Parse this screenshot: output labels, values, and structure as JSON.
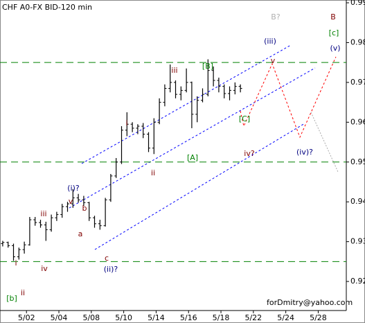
{
  "chart_data": {
    "type": "ohlc",
    "title": "CHF A0-FX BID-120 min",
    "credit": "forDmitry@yahoo.com",
    "x": [
      0,
      1,
      2,
      3,
      4,
      5,
      6,
      7,
      8,
      9,
      10,
      11,
      12,
      13,
      14,
      15,
      16,
      17,
      18,
      19,
      20,
      21,
      22,
      23,
      24,
      25,
      26,
      27,
      28,
      29,
      30,
      31,
      32,
      33,
      34,
      35,
      36,
      37,
      38,
      39,
      40,
      41,
      42,
      43,
      44
    ],
    "open": [
      0.9295,
      0.9298,
      0.929,
      0.9262,
      0.928,
      0.9292,
      0.9355,
      0.9348,
      0.9342,
      0.933,
      0.936,
      0.9368,
      0.9388,
      0.9395,
      0.941,
      0.9405,
      0.9398,
      0.936,
      0.9345,
      0.934,
      0.9405,
      0.9465,
      0.95,
      0.958,
      0.9595,
      0.9585,
      0.959,
      0.957,
      0.9535,
      0.96,
      0.965,
      0.9685,
      0.97,
      0.967,
      0.968,
      0.97,
      0.962,
      0.9655,
      0.967,
      0.973,
      0.9705,
      0.969,
      0.9672,
      0.968,
      0.969
    ],
    "high": [
      0.9302,
      0.93,
      0.9295,
      0.9285,
      0.93,
      0.9362,
      0.9362,
      0.9355,
      0.935,
      0.9368,
      0.9375,
      0.9395,
      0.94,
      0.9432,
      0.942,
      0.9415,
      0.94,
      0.9365,
      0.9355,
      0.941,
      0.947,
      0.951,
      0.959,
      0.9625,
      0.96,
      0.9595,
      0.9598,
      0.9575,
      0.961,
      0.966,
      0.9695,
      0.9745,
      0.9705,
      0.969,
      0.9735,
      0.9702,
      0.9665,
      0.9685,
      0.9758,
      0.974,
      0.9712,
      0.9695,
      0.969,
      0.97,
      0.9695
    ],
    "low": [
      0.9288,
      0.9285,
      0.9252,
      0.9255,
      0.927,
      0.929,
      0.934,
      0.9335,
      0.9302,
      0.9325,
      0.9352,
      0.936,
      0.9375,
      0.9385,
      0.9398,
      0.939,
      0.9352,
      0.9335,
      0.933,
      0.9338,
      0.94,
      0.946,
      0.9495,
      0.9565,
      0.9575,
      0.957,
      0.956,
      0.9525,
      0.952,
      0.9595,
      0.964,
      0.9675,
      0.966,
      0.9655,
      0.9675,
      0.9585,
      0.96,
      0.965,
      0.9665,
      0.969,
      0.9675,
      0.966,
      0.9655,
      0.967,
      0.9675
    ],
    "close": [
      0.9298,
      0.929,
      0.9262,
      0.928,
      0.9292,
      0.9355,
      0.9348,
      0.9342,
      0.933,
      0.936,
      0.9368,
      0.9388,
      0.9395,
      0.941,
      0.9405,
      0.9398,
      0.936,
      0.9345,
      0.934,
      0.9405,
      0.9465,
      0.95,
      0.958,
      0.9595,
      0.9585,
      0.959,
      0.957,
      0.9535,
      0.96,
      0.965,
      0.9685,
      0.97,
      0.967,
      0.968,
      0.97,
      0.962,
      0.9655,
      0.967,
      0.973,
      0.9705,
      0.969,
      0.9672,
      0.968,
      0.969,
      0.9685
    ],
    "color": "#000000",
    "xlim": [
      -0.5,
      63.6
    ],
    "xticks": [
      {
        "value": 4.4,
        "label": "5/02"
      },
      {
        "value": 10.4,
        "label": "5/04"
      },
      {
        "value": 16.4,
        "label": "5/08"
      },
      {
        "value": 22.4,
        "label": "5/10"
      },
      {
        "value": 28.4,
        "label": "5/14"
      },
      {
        "value": 34.4,
        "label": "5/16"
      },
      {
        "value": 40.4,
        "label": "5/18"
      },
      {
        "value": 46.4,
        "label": "5/22"
      },
      {
        "value": 52.4,
        "label": "5/24"
      },
      {
        "value": 58.4,
        "label": "5/28"
      }
    ],
    "ylim": [
      0.9127,
      0.9907
    ],
    "yticks": [
      0.92,
      0.93,
      0.94,
      0.95,
      0.96,
      0.97,
      0.98,
      0.99
    ],
    "hlines": [
      0.975,
      0.95,
      0.925
    ],
    "hline_color": "#008000",
    "annotations": [
      {
        "text": "B?",
        "color": "#b0b0b0"
      },
      {
        "text": "B",
        "color": "#800000"
      },
      {
        "text": "[c]",
        "color": "#008000"
      },
      {
        "text": "(v)",
        "color": "#000080"
      },
      {
        "text": "(iii)",
        "color": "#000080"
      },
      {
        "text": "v",
        "color": "#800000"
      },
      {
        "text": "[B]",
        "color": "#008000"
      },
      {
        "text": "iii",
        "color": "#800000"
      },
      {
        "text": "i",
        "color": "#800000"
      },
      {
        "text": "[C]",
        "color": "#008000"
      },
      {
        "text": "iv?",
        "color": "#800000"
      },
      {
        "text": "(iv)?",
        "color": "#000080"
      },
      {
        "text": "[A]",
        "color": "#008000"
      },
      {
        "text": "ii",
        "color": "#800000"
      },
      {
        "text": "(i)?",
        "color": "#000080"
      },
      {
        "text": "v",
        "color": "#800000"
      },
      {
        "text": "b",
        "color": "#800000"
      },
      {
        "text": "iii",
        "color": "#800000"
      },
      {
        "text": "a",
        "color": "#800000"
      },
      {
        "text": "c",
        "color": "#800000"
      },
      {
        "text": "iv",
        "color": "#800000"
      },
      {
        "text": "(ii)?",
        "color": "#000080"
      },
      {
        "text": "i",
        "color": "#800000"
      },
      {
        "text": "ii",
        "color": "#800000"
      },
      {
        "text": "[b]",
        "color": "#008000"
      }
    ]
  }
}
